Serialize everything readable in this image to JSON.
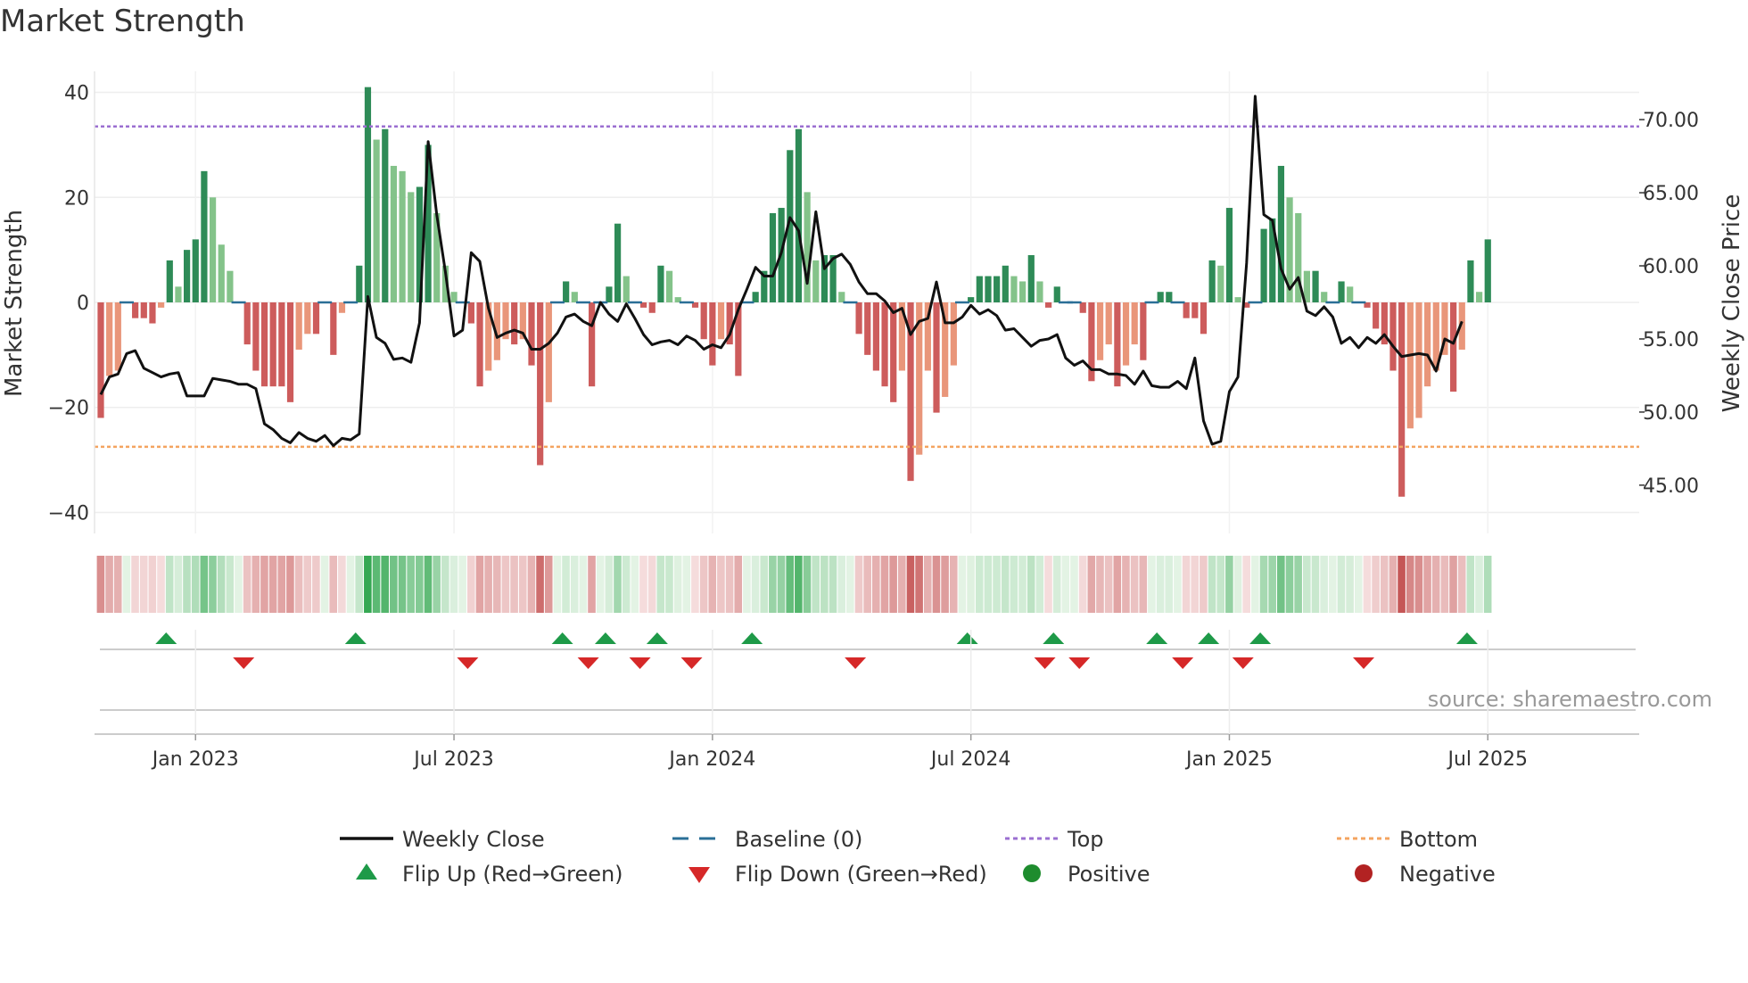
{
  "chart_data": {
    "type": "bar",
    "title": "Market Strength",
    "ylabel_left": "Market Strength",
    "ylabel_right": "Weekly Close Price",
    "ylim_left": [
      -44,
      44
    ],
    "ylim_right": [
      41.7,
      73.3
    ],
    "left_ticks": [
      "40",
      "20",
      "0",
      "−20",
      "−40"
    ],
    "left_tick_values": [
      40,
      20,
      0,
      -20,
      -40
    ],
    "right_ticks": [
      "70.00",
      "65.00",
      "60.00",
      "55.00",
      "50.00",
      "45.00"
    ],
    "right_tick_values": [
      70,
      65,
      60,
      55,
      50,
      45
    ],
    "x_ticks": [
      "Jan 2023",
      "Jul 2023",
      "Jan 2024",
      "Jul 2024",
      "Jan 2025",
      "Jul 2025"
    ],
    "x_tick_weeks": [
      11,
      41,
      71,
      101,
      131,
      161
    ],
    "top_level": 33.5,
    "bottom_level": -27.5,
    "source_text": "source: sharemaestro.com",
    "strength": [
      -22,
      -14,
      -13,
      0,
      -3,
      -3,
      -4,
      -1,
      8,
      3,
      10,
      12,
      25,
      20,
      11,
      6,
      0,
      -8,
      -13,
      -16,
      -16,
      -16,
      -19,
      -9,
      -6,
      -6,
      0,
      -10,
      -2,
      0,
      7,
      41,
      31,
      33,
      26,
      25,
      21,
      22,
      30,
      17,
      7,
      2,
      0,
      -4,
      -16,
      -13,
      -11,
      -7,
      -8,
      -7,
      -12,
      -31,
      -19,
      0,
      4,
      2,
      0,
      -16,
      0,
      3,
      15,
      5,
      0,
      -1,
      -2,
      7,
      6,
      1,
      0,
      -1,
      -7,
      -12,
      -7,
      -8,
      -14,
      0,
      2,
      6,
      17,
      18,
      29,
      33,
      21,
      8,
      9,
      9,
      2,
      0,
      -6,
      -10,
      -13,
      -16,
      -19,
      -13,
      -34,
      -29,
      -13,
      -21,
      -18,
      -12,
      0,
      1,
      5,
      5,
      5,
      7,
      5,
      4,
      9,
      4,
      -1,
      3,
      0,
      0,
      -2,
      -15,
      -11,
      -8,
      -16,
      -12,
      -8,
      -11,
      0,
      2,
      2,
      0,
      -3,
      -3,
      -6,
      8,
      7,
      18,
      1,
      -1,
      0,
      14,
      16,
      26,
      20,
      17,
      6,
      6,
      2,
      0,
      4,
      3,
      0,
      -1,
      -5,
      -8,
      -13,
      -37,
      -24,
      -22,
      -16,
      -13,
      -10,
      -17,
      -9,
      8,
      2,
      12
    ],
    "close": [
      51.2,
      52.4,
      52.6,
      54,
      54.2,
      53,
      52.7,
      52.4,
      52.6,
      52.7,
      51.1,
      51.1,
      51.1,
      52.3,
      52.2,
      52.1,
      51.9,
      51.9,
      51.6,
      49.2,
      48.8,
      48.2,
      47.9,
      48.6,
      48.2,
      48,
      48.4,
      47.7,
      48.2,
      48.1,
      48.5,
      57.9,
      55.1,
      54.7,
      53.6,
      53.7,
      53.4,
      56.1,
      68.5,
      63.5,
      59.6,
      55.2,
      55.6,
      60.9,
      60.3,
      57.1,
      55.1,
      55.4,
      55.6,
      55.4,
      54.3,
      54.3,
      54.7,
      55.4,
      56.5,
      56.7,
      56.2,
      55.9,
      57.5,
      56.7,
      56.2,
      57.4,
      56.4,
      55.3,
      54.6,
      54.8,
      54.9,
      54.6,
      55.2,
      54.9,
      54.3,
      54.6,
      54.4,
      55.3,
      57,
      58.4,
      59.9,
      59.3,
      59.3,
      60.9,
      63.3,
      62.4,
      58.8,
      63.7,
      59.8,
      60.5,
      60.8,
      60.1,
      58.9,
      58.1,
      58.1,
      57.6,
      56.8,
      57.1,
      55.3,
      56.2,
      56.4,
      58.9,
      56.1,
      56.1,
      56.5,
      57.3,
      56.7,
      57,
      56.6,
      55.6,
      55.7,
      55.1,
      54.5,
      54.9,
      55,
      55.3,
      53.7,
      53.2,
      53.5,
      52.9,
      52.9,
      52.6,
      52.6,
      52.5,
      51.9,
      52.8,
      51.8,
      51.7,
      51.7,
      52.1,
      51.6,
      53.7,
      49.4,
      47.8,
      48,
      51.4,
      52.4,
      60.2,
      71.6,
      63.5,
      63.1,
      59.8,
      58.4,
      59.2,
      56.9,
      56.6,
      57.2,
      56.5,
      54.7,
      55.1,
      54.4,
      55.1,
      54.7,
      55.3,
      54.5,
      53.8,
      53.9,
      54,
      53.9,
      52.8,
      55,
      54.7,
      56.2
    ]
  },
  "legend": {
    "weekly_close": "Weekly Close",
    "baseline": "Baseline (0)",
    "top": "Top",
    "bottom": "Bottom",
    "flip_up": "Flip Up (Red→Green)",
    "flip_down": "Flip Down (Green→Red)",
    "positive": "Positive",
    "negative": "Negative"
  },
  "colors": {
    "close_line": "#111111",
    "baseline": "#2a6f97",
    "top": "#9b6fd1",
    "bottom": "#f4a460",
    "flip_up": "#1e9a48",
    "flip_down": "#d62828",
    "positive": "#1e8c2e",
    "negative": "#b22222"
  }
}
